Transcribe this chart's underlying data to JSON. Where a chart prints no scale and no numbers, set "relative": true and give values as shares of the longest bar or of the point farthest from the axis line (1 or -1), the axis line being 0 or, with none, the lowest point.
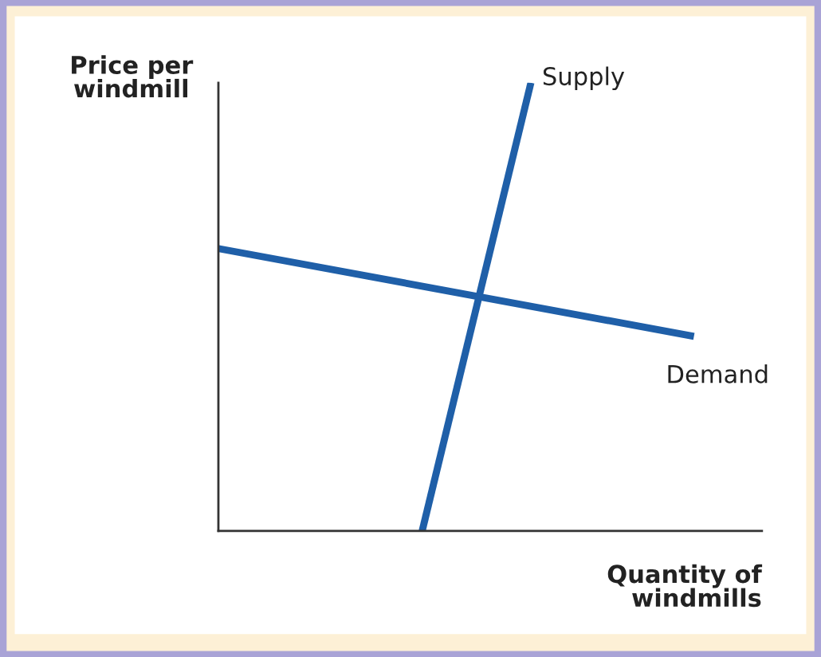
{
  "chart_data": {
    "type": "line",
    "relative": true,
    "ylabel": "Price per\nwindmill",
    "xlabel": "Quantity of\nwindmills",
    "legend": false,
    "categories": [
      null,
      null,
      null,
      null,
      null,
      null,
      null,
      null,
      null,
      null,
      null,
      null,
      null,
      null,
      null,
      null,
      null,
      null,
      null,
      null,
      null,
      null,
      null,
      null,
      null,
      null,
      null,
      null,
      null,
      null,
      null,
      null,
      null,
      null,
      null,
      null,
      null,
      null,
      null,
      null,
      null
    ],
    "series": [
      {
        "name": "Supply",
        "color": "#1f5fa8",
        "values": [
          null,
          null,
          null,
          null,
          null,
          null,
          null,
          null,
          null,
          null,
          null,
          null,
          null,
          null,
          null,
          0,
          null,
          null,
          null,
          null,
          null,
          null,
          null,
          1,
          null,
          null,
          null,
          null,
          null,
          null,
          null,
          null,
          null,
          null,
          null,
          null,
          null,
          null,
          null,
          null,
          null
        ]
      },
      {
        "name": "Demand",
        "color": "#1f5fa8",
        "values": [
          0.63,
          null,
          null,
          null,
          null,
          null,
          null,
          null,
          null,
          null,
          null,
          null,
          null,
          null,
          null,
          null,
          null,
          null,
          null,
          null,
          null,
          null,
          null,
          null,
          null,
          null,
          null,
          null,
          null,
          null,
          null,
          null,
          null,
          null,
          null,
          0.434,
          null,
          null,
          null,
          null,
          null
        ]
      }
    ]
  }
}
